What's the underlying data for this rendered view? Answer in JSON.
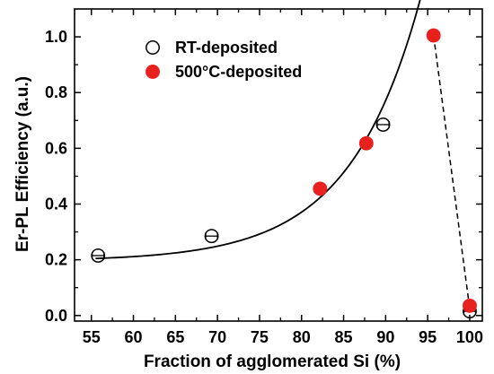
{
  "chart_data": {
    "type": "scatter",
    "xlabel": "Fraction of agglomerated Si (%)",
    "ylabel": "Er-PL Efficiency (a.u.)",
    "xlim": [
      53,
      101.5
    ],
    "ylim": [
      -0.02,
      1.1
    ],
    "xticks": [
      55,
      60,
      65,
      70,
      75,
      80,
      85,
      90,
      95,
      100
    ],
    "yticks": [
      0.0,
      0.2,
      0.4,
      0.6,
      0.8,
      1.0
    ],
    "ytick_labels": [
      "0.0",
      "0.2",
      "0.4",
      "0.6",
      "0.8",
      "1.0"
    ],
    "grid": false,
    "legend_position": "top-left",
    "series": [
      {
        "name": "RT-deposited",
        "marker": "open-circle",
        "color": "#000000",
        "points": [
          {
            "x": 55.8,
            "y": 0.215,
            "xerr": 0.7
          },
          {
            "x": 69.3,
            "y": 0.285,
            "xerr": 0.7
          },
          {
            "x": 89.7,
            "y": 0.685,
            "xerr": 0.7
          },
          {
            "x": 100.0,
            "y": 0.015,
            "xerr": 0.7
          }
        ]
      },
      {
        "name": "500°C-deposited",
        "marker": "filled-circle",
        "color": "#e8211f",
        "points": [
          {
            "x": 82.2,
            "y": 0.455,
            "xerr": 0.7
          },
          {
            "x": 87.7,
            "y": 0.618,
            "xerr": 0.7
          },
          {
            "x": 95.7,
            "y": 1.005,
            "xerr": 0.7
          },
          {
            "x": 100.0,
            "y": 0.035,
            "xerr": 0.7
          }
        ]
      }
    ],
    "fit_curve": {
      "style": "solid",
      "color": "#000000",
      "x_from": 55.5,
      "x_to": 95.7
    },
    "dashed_line": {
      "style": "dashed",
      "color": "#000000",
      "from": {
        "x": 95.7,
        "y": 1.005
      },
      "to": {
        "x": 100.0,
        "y": 0.025
      }
    }
  }
}
